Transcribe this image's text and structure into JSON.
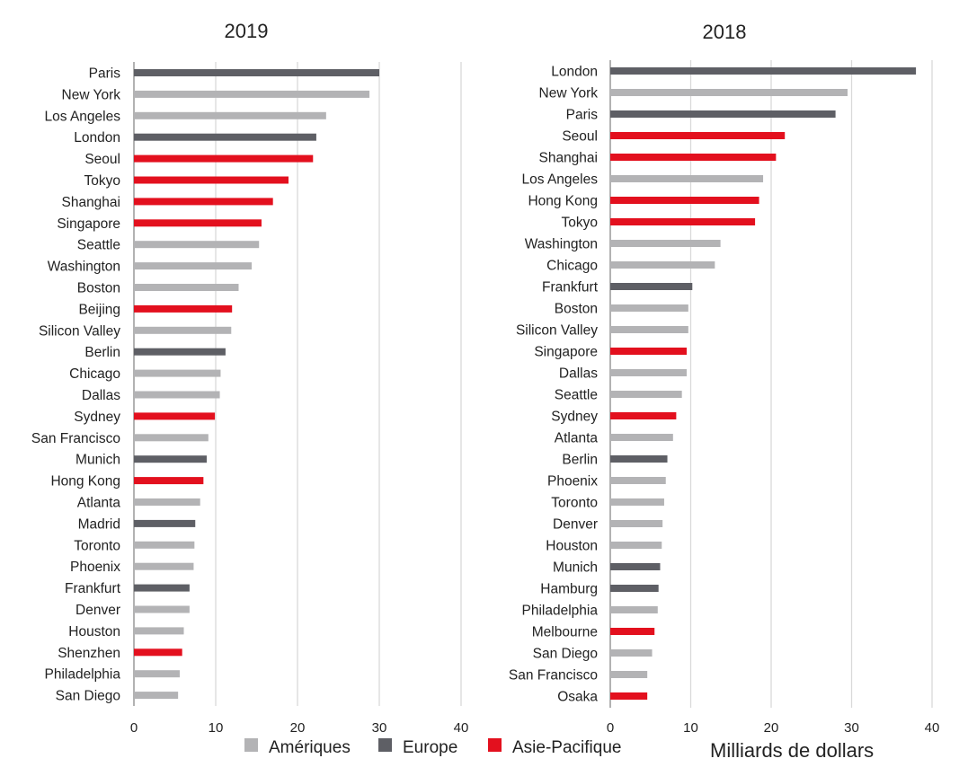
{
  "chart_data": [
    {
      "type": "bar",
      "orientation": "horizontal",
      "title": "2019",
      "xlim": [
        0,
        40
      ],
      "xticks": [
        0,
        10,
        20,
        30,
        40
      ],
      "grid": "vertical",
      "categories": [
        "Paris",
        "New York",
        "Los Angeles",
        "London",
        "Seoul",
        "Tokyo",
        "Shanghai",
        "Singapore",
        "Seattle",
        "Washington",
        "Boston",
        "Beijing",
        "Silicon Valley",
        "Berlin",
        "Chicago",
        "Dallas",
        "Sydney",
        "San Francisco",
        "Munich",
        "Hong Kong",
        "Atlanta",
        "Madrid",
        "Toronto",
        "Phoenix",
        "Frankfurt",
        "Denver",
        "Houston",
        "Shenzhen",
        "Philadelphia",
        "San Diego"
      ],
      "values": [
        30.0,
        28.8,
        23.5,
        22.3,
        21.9,
        18.9,
        17.0,
        15.6,
        15.3,
        14.4,
        12.8,
        12.0,
        11.9,
        11.2,
        10.6,
        10.5,
        9.9,
        9.1,
        8.9,
        8.5,
        8.1,
        7.5,
        7.4,
        7.3,
        6.8,
        6.8,
        6.1,
        5.9,
        5.6,
        5.4
      ],
      "regions": [
        "Europe",
        "Amériques",
        "Amériques",
        "Europe",
        "Asie-Pacifique",
        "Asie-Pacifique",
        "Asie-Pacifique",
        "Asie-Pacifique",
        "Amériques",
        "Amériques",
        "Amériques",
        "Asie-Pacifique",
        "Amériques",
        "Europe",
        "Amériques",
        "Amériques",
        "Asie-Pacifique",
        "Amériques",
        "Europe",
        "Asie-Pacifique",
        "Amériques",
        "Europe",
        "Amériques",
        "Amériques",
        "Europe",
        "Amériques",
        "Amériques",
        "Asie-Pacifique",
        "Amériques",
        "Amériques"
      ]
    },
    {
      "type": "bar",
      "orientation": "horizontal",
      "title": "2018",
      "xlabel": "Milliards de dollars",
      "xlim": [
        0,
        40
      ],
      "xticks": [
        0,
        10,
        20,
        30,
        40
      ],
      "grid": "vertical",
      "categories": [
        "London",
        "New York",
        "Paris",
        "Seoul",
        "Shanghai",
        "Los Angeles",
        "Hong Kong",
        "Tokyo",
        "Washington",
        "Chicago",
        "Frankfurt",
        "Boston",
        "Silicon Valley",
        "Singapore",
        "Dallas",
        "Seattle",
        "Sydney",
        "Atlanta",
        "Berlin",
        "Phoenix",
        "Toronto",
        "Denver",
        "Houston",
        "Munich",
        "Hamburg",
        "Philadelphia",
        "Melbourne",
        "San Diego",
        "San Francisco",
        "Osaka"
      ],
      "values": [
        38.0,
        29.5,
        28.0,
        21.7,
        20.6,
        19.0,
        18.5,
        18.0,
        13.7,
        13.0,
        10.2,
        9.7,
        9.7,
        9.5,
        9.5,
        8.9,
        8.2,
        7.8,
        7.1,
        6.9,
        6.7,
        6.5,
        6.4,
        6.2,
        6.0,
        5.9,
        5.5,
        5.2,
        4.6,
        4.6
      ],
      "regions": [
        "Europe",
        "Amériques",
        "Europe",
        "Asie-Pacifique",
        "Asie-Pacifique",
        "Amériques",
        "Asie-Pacifique",
        "Asie-Pacifique",
        "Amériques",
        "Amériques",
        "Europe",
        "Amériques",
        "Amériques",
        "Asie-Pacifique",
        "Amériques",
        "Amériques",
        "Asie-Pacifique",
        "Amériques",
        "Europe",
        "Amériques",
        "Amériques",
        "Amériques",
        "Amériques",
        "Europe",
        "Europe",
        "Amériques",
        "Asie-Pacifique",
        "Amériques",
        "Amériques",
        "Asie-Pacifique"
      ]
    }
  ],
  "legend": {
    "position": "bottom-center",
    "items": [
      {
        "label": "Amériques",
        "color": "#B3B3B5"
      },
      {
        "label": "Europe",
        "color": "#5E5F65"
      },
      {
        "label": "Asie-Pacifique",
        "color": "#E3101E"
      }
    ]
  },
  "colors": {
    "Amériques": "#B3B3B5",
    "Europe": "#5E5F65",
    "Asie-Pacifique": "#E3101E",
    "axis": "#7F7F7F",
    "grid": "#D9D9D9"
  }
}
